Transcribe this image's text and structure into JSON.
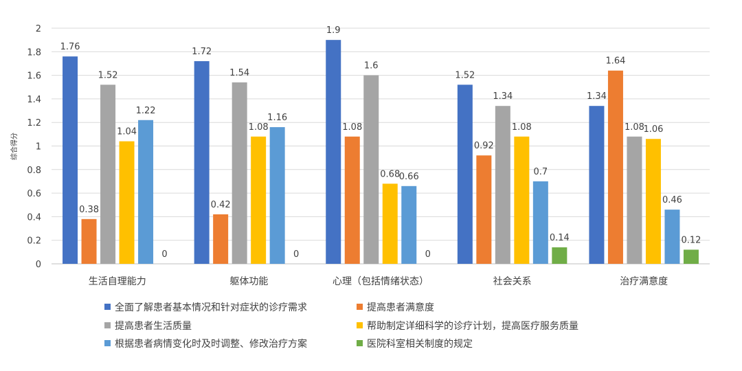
{
  "chart_data": {
    "type": "bar",
    "title": "",
    "xlabel": "",
    "ylabel": "综合得分",
    "ylim": [
      0,
      2
    ],
    "yticks": [
      "0",
      "0.2",
      "0.4",
      "0.6",
      "0.8",
      "1",
      "1.2",
      "1.4",
      "1.6",
      "1.8",
      "2"
    ],
    "grid": true,
    "legend_position": "bottom",
    "categories": [
      "生活自理能力",
      "躯体功能",
      "心理（包括情绪状态）",
      "社会关系",
      "治疗满意度"
    ],
    "series": [
      {
        "name": "全面了解患者基本情况和针对症状的诊疗需求",
        "color": "#4472C4",
        "values": [
          1.76,
          1.72,
          1.9,
          1.52,
          1.34
        ],
        "labels": [
          "1.76",
          "1.72",
          "1.9",
          "1.52",
          "1.34"
        ]
      },
      {
        "name": "提高患者满意度",
        "color": "#ED7D31",
        "values": [
          0.38,
          0.42,
          1.08,
          0.92,
          1.64
        ],
        "labels": [
          "0.38",
          "0.42",
          "1.08",
          "0.92",
          "1.64"
        ]
      },
      {
        "name": "提高患者生活质量",
        "color": "#A5A5A5",
        "values": [
          1.52,
          1.54,
          1.6,
          1.34,
          1.08
        ],
        "labels": [
          "1.52",
          "1.54",
          "1.6",
          "1.34",
          "1.08"
        ]
      },
      {
        "name": "帮助制定详细科学的诊疗计划，提高医疗服务质量",
        "color": "#FFC000",
        "values": [
          1.04,
          1.08,
          0.68,
          1.08,
          1.06
        ],
        "labels": [
          "1.04",
          "1.08",
          "0.68",
          "1.08",
          "1.06"
        ]
      },
      {
        "name": "根据患者病情变化时及时调整、修改治疗方案",
        "color": "#5B9BD5",
        "values": [
          1.22,
          1.16,
          0.66,
          0.7,
          0.46
        ],
        "labels": [
          "1.22",
          "1.16",
          "0.66",
          "0.7",
          "0.46"
        ]
      },
      {
        "name": "医院科室相关制度的规定",
        "color": "#70AD47",
        "values": [
          0,
          0,
          0,
          0.14,
          0.12
        ],
        "labels": [
          "0",
          "0",
          "0",
          "0.14",
          "0.12"
        ]
      }
    ]
  }
}
